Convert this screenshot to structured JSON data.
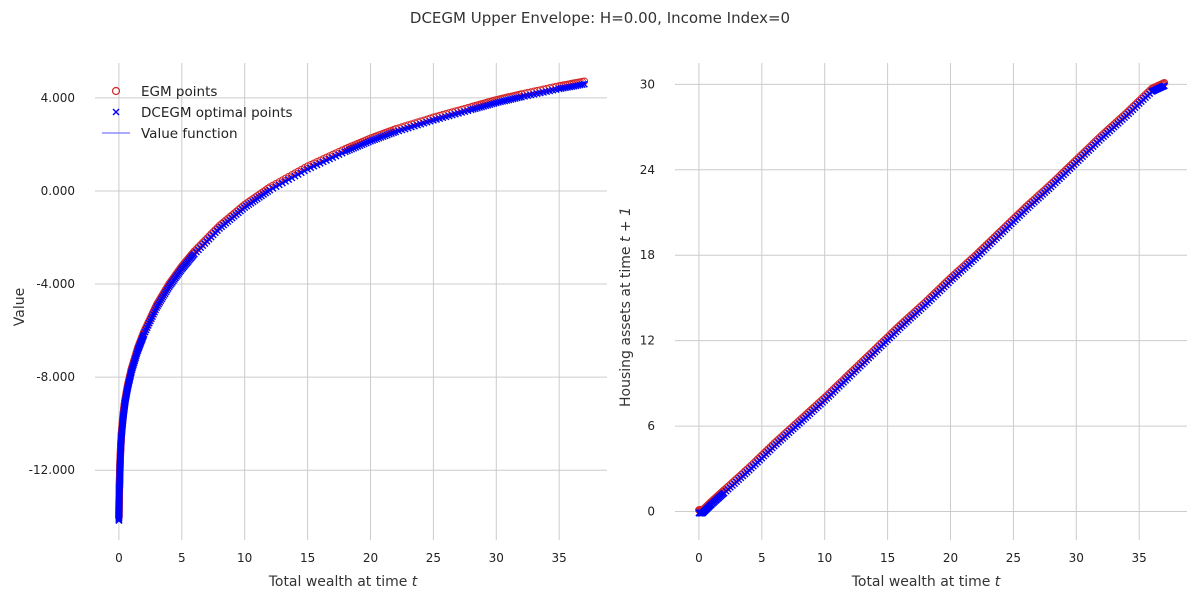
{
  "figure_title": "DCEGM Upper Envelope: H=0.00, Income Index=0",
  "colors": {
    "egm": "#d62728",
    "dcegm": "#0000ff",
    "value_line": "#7777ff",
    "grid": "#cccccc"
  },
  "chart_data": [
    {
      "type": "scatter",
      "xlabel_text": "Total wealth at time ",
      "xlabel_var": "t",
      "ylabel": "Value",
      "xlim": [
        -1.9,
        38.8
      ],
      "ylim": [
        -15.0,
        5.5
      ],
      "xticks": [
        0,
        5,
        10,
        15,
        20,
        25,
        30,
        35
      ],
      "xtick_labels": [
        "0",
        "5",
        "10",
        "15",
        "20",
        "25",
        "30",
        "35"
      ],
      "yticks": [
        4,
        0,
        -4,
        -8,
        -12
      ],
      "ytick_labels": [
        "4.000",
        "0.000",
        "-4.000",
        "-8.000",
        "-12.000"
      ],
      "grid": true,
      "legend": {
        "position": "top-left",
        "entries": [
          {
            "label": "EGM points",
            "marker": "circle-open",
            "color": "#d62728"
          },
          {
            "label": "DCEGM optimal points",
            "marker": "x",
            "color": "#0000ff"
          },
          {
            "label": "Value function",
            "marker": "line",
            "color": "#7777ff"
          }
        ]
      },
      "series": [
        {
          "name": "EGM points",
          "marker": "circle-open",
          "x": [
            0.0,
            0.01,
            0.02,
            0.04,
            0.06,
            0.08,
            0.1,
            0.15,
            0.2,
            0.3,
            0.4,
            0.5,
            0.7,
            1.0,
            1.5,
            2.0,
            3.0,
            4.0,
            5.0,
            6.0,
            8.0,
            10.0,
            12.0,
            15.0,
            18.0,
            20.0,
            22.0,
            25.0,
            28.0,
            30.0,
            32.0,
            35.0,
            37.0
          ],
          "y": [
            -14.1,
            -13.7,
            -13.3,
            -12.8,
            -12.4,
            -12.0,
            -11.6,
            -11.0,
            -10.5,
            -9.9,
            -9.4,
            -9.0,
            -8.4,
            -7.7,
            -6.8,
            -6.1,
            -4.95,
            -4.05,
            -3.3,
            -2.65,
            -1.55,
            -0.65,
            0.1,
            1.0,
            1.75,
            2.2,
            2.6,
            3.1,
            3.55,
            3.85,
            4.1,
            4.45,
            4.65
          ]
        },
        {
          "name": "DCEGM optimal points",
          "marker": "x",
          "x": [
            0.0,
            0.01,
            0.02,
            0.04,
            0.06,
            0.08,
            0.1,
            0.15,
            0.2,
            0.3,
            0.4,
            0.5,
            0.7,
            1.0,
            1.5,
            2.0,
            3.0,
            4.0,
            5.0,
            6.0,
            8.0,
            10.0,
            12.0,
            15.0,
            18.0,
            20.0,
            22.0,
            25.0,
            28.0,
            30.0,
            32.0,
            35.0,
            37.0
          ],
          "y": [
            -14.1,
            -13.7,
            -13.3,
            -12.8,
            -12.4,
            -12.0,
            -11.6,
            -11.0,
            -10.5,
            -9.9,
            -9.4,
            -9.0,
            -8.4,
            -7.7,
            -6.8,
            -6.1,
            -4.95,
            -4.05,
            -3.3,
            -2.65,
            -1.55,
            -0.65,
            0.1,
            1.0,
            1.75,
            2.2,
            2.6,
            3.1,
            3.55,
            3.85,
            4.1,
            4.45,
            4.65
          ]
        },
        {
          "name": "Value function",
          "marker": "line",
          "x": [
            0.0,
            0.01,
            0.02,
            0.04,
            0.06,
            0.08,
            0.1,
            0.15,
            0.2,
            0.3,
            0.4,
            0.5,
            0.7,
            1.0,
            1.5,
            2.0,
            3.0,
            4.0,
            5.0,
            6.0,
            8.0,
            10.0,
            12.0,
            15.0,
            18.0,
            20.0,
            22.0,
            25.0,
            28.0,
            30.0,
            32.0,
            35.0,
            37.0
          ],
          "y": [
            -14.1,
            -13.7,
            -13.3,
            -12.8,
            -12.4,
            -12.0,
            -11.6,
            -11.0,
            -10.5,
            -9.9,
            -9.4,
            -9.0,
            -8.4,
            -7.7,
            -6.8,
            -6.1,
            -4.95,
            -4.05,
            -3.3,
            -2.65,
            -1.55,
            -0.65,
            0.1,
            1.0,
            1.75,
            2.2,
            2.6,
            3.1,
            3.55,
            3.85,
            4.1,
            4.45,
            4.65
          ]
        }
      ]
    },
    {
      "type": "scatter",
      "xlabel_text": "Total wealth at time ",
      "xlabel_var": "t",
      "ylabel_text": "Housing assets at time ",
      "ylabel_var": "t + 1",
      "xlim": [
        -1.9,
        38.8
      ],
      "ylim": [
        -2.0,
        31.5
      ],
      "xticks": [
        0,
        5,
        10,
        15,
        20,
        25,
        30,
        35
      ],
      "xtick_labels": [
        "0",
        "5",
        "10",
        "15",
        "20",
        "25",
        "30",
        "35"
      ],
      "yticks": [
        0,
        6,
        12,
        18,
        24,
        30
      ],
      "ytick_labels": [
        "0",
        "6",
        "12",
        "18",
        "24",
        "30"
      ],
      "grid": true,
      "series": [
        {
          "name": "EGM points",
          "marker": "circle-open",
          "x": [
            0.0,
            0.2,
            0.3,
            1.0,
            2.0,
            4.0,
            6.0,
            8.0,
            10.0,
            12.0,
            14.0,
            16.0,
            18.0,
            20.0,
            22.0,
            24.0,
            26.0,
            28.0,
            30.0,
            32.0,
            34.0,
            36.0,
            37.0
          ],
          "y": [
            0.0,
            0.0,
            0.0,
            0.6,
            1.4,
            3.0,
            4.7,
            6.3,
            7.9,
            9.6,
            11.3,
            13.0,
            14.6,
            16.3,
            17.9,
            19.6,
            21.3,
            22.9,
            24.6,
            26.3,
            27.9,
            29.6,
            30.0
          ]
        },
        {
          "name": "DCEGM optimal points",
          "marker": "x",
          "x": [
            0.0,
            0.2,
            0.3,
            1.0,
            2.0,
            4.0,
            6.0,
            8.0,
            10.0,
            12.0,
            14.0,
            16.0,
            18.0,
            20.0,
            22.0,
            24.0,
            26.0,
            28.0,
            30.0,
            32.0,
            34.0,
            36.0,
            37.0
          ],
          "y": [
            0.0,
            0.0,
            0.0,
            0.6,
            1.4,
            3.0,
            4.7,
            6.3,
            7.9,
            9.6,
            11.3,
            13.0,
            14.6,
            16.3,
            17.9,
            19.6,
            21.3,
            22.9,
            24.6,
            26.3,
            27.9,
            29.6,
            30.0
          ]
        }
      ]
    }
  ]
}
